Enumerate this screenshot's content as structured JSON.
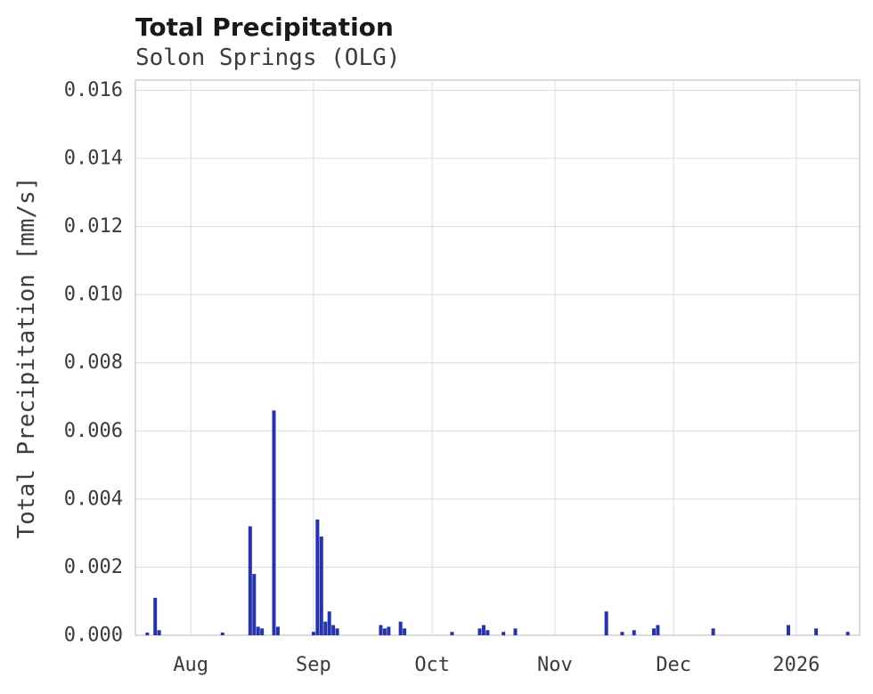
{
  "chart_data": {
    "type": "bar",
    "title": "Total Precipitation",
    "subtitle": "Solon Springs (OLG)",
    "xlabel": "",
    "ylabel": "Total Precipitation [mm/s]",
    "ylim": [
      0,
      0.0163
    ],
    "yticks": [
      0,
      0.002,
      0.004,
      0.006,
      0.008,
      0.01,
      0.012,
      0.014,
      0.016
    ],
    "ytick_labels": [
      "0.000",
      "0.002",
      "0.004",
      "0.006",
      "0.008",
      "0.010",
      "0.012",
      "0.014",
      "0.016"
    ],
    "x_domain": [
      "2025-07-18",
      "2026-01-17"
    ],
    "xticks": [
      {
        "date": "2025-08-01",
        "label": "Aug"
      },
      {
        "date": "2025-09-01",
        "label": "Sep"
      },
      {
        "date": "2025-10-01",
        "label": "Oct"
      },
      {
        "date": "2025-11-01",
        "label": "Nov"
      },
      {
        "date": "2025-12-01",
        "label": "Dec"
      },
      {
        "date": "2026-01-01",
        "label": "2026"
      }
    ],
    "grid": true,
    "legend": false,
    "colors": {
      "bar": "#2733a8",
      "grid": "#dcdcdc",
      "frame": "#c8c8c8",
      "text": "#3b3b3b"
    },
    "points": [
      {
        "date": "2025-07-21",
        "value": 8e-05
      },
      {
        "date": "2025-07-23",
        "value": 0.0011
      },
      {
        "date": "2025-07-24",
        "value": 0.00015
      },
      {
        "date": "2025-08-09",
        "value": 8e-05
      },
      {
        "date": "2025-08-16",
        "value": 0.0032
      },
      {
        "date": "2025-08-17",
        "value": 0.0018
      },
      {
        "date": "2025-08-18",
        "value": 0.00025
      },
      {
        "date": "2025-08-19",
        "value": 0.0002
      },
      {
        "date": "2025-08-22",
        "value": 0.0066
      },
      {
        "date": "2025-08-23",
        "value": 0.00025
      },
      {
        "date": "2025-09-01",
        "value": 0.0001
      },
      {
        "date": "2025-09-02",
        "value": 0.0034
      },
      {
        "date": "2025-09-03",
        "value": 0.0029
      },
      {
        "date": "2025-09-04",
        "value": 0.0004
      },
      {
        "date": "2025-09-05",
        "value": 0.0007
      },
      {
        "date": "2025-09-06",
        "value": 0.0003
      },
      {
        "date": "2025-09-07",
        "value": 0.0002
      },
      {
        "date": "2025-09-18",
        "value": 0.0003
      },
      {
        "date": "2025-09-19",
        "value": 0.0002
      },
      {
        "date": "2025-09-20",
        "value": 0.00025
      },
      {
        "date": "2025-09-23",
        "value": 0.0004
      },
      {
        "date": "2025-09-24",
        "value": 0.0002
      },
      {
        "date": "2025-10-06",
        "value": 0.0001
      },
      {
        "date": "2025-10-13",
        "value": 0.0002
      },
      {
        "date": "2025-10-14",
        "value": 0.0003
      },
      {
        "date": "2025-10-15",
        "value": 0.00015
      },
      {
        "date": "2025-10-19",
        "value": 0.0001
      },
      {
        "date": "2025-10-22",
        "value": 0.0002
      },
      {
        "date": "2025-11-14",
        "value": 0.0007
      },
      {
        "date": "2025-11-18",
        "value": 0.0001
      },
      {
        "date": "2025-11-21",
        "value": 0.00015
      },
      {
        "date": "2025-11-26",
        "value": 0.0002
      },
      {
        "date": "2025-11-27",
        "value": 0.0003
      },
      {
        "date": "2025-12-11",
        "value": 0.0002
      },
      {
        "date": "2025-12-30",
        "value": 0.0003
      },
      {
        "date": "2026-01-06",
        "value": 0.0002
      },
      {
        "date": "2026-01-14",
        "value": 0.0001
      }
    ]
  }
}
